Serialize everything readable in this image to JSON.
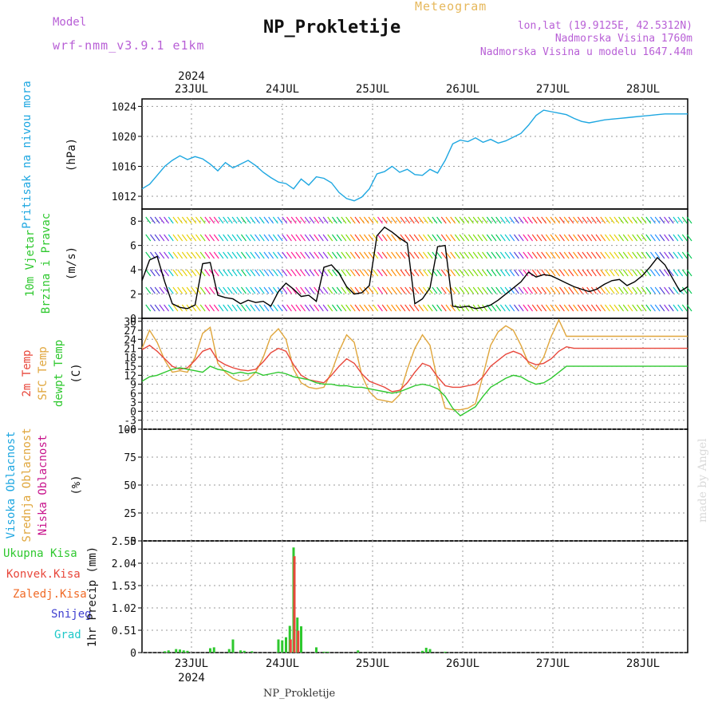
{
  "header": {
    "model_label": "Model",
    "model_name": "wrf-nmm_v3.9.1 e1km",
    "title": "NP_Prokletije",
    "meteogram": "Meteogram",
    "location_line": "lon,lat (19.9125E, 42.5312N)",
    "elevation_line": "Nadmorska Visina 1760m",
    "model_elevation_line": "Nadmorska Visina u modelu 1647.44m"
  },
  "footer": {
    "station": "NP_Prokletije",
    "credit": "made by Angel"
  },
  "colors": {
    "pressure": "#1ea7e1",
    "temp_2m": "#e8473b",
    "temp_sfc": "#e0a63c",
    "dewpoint": "#2ec82e",
    "cloud_high": "#1ea7e1",
    "cloud_mid": "#e0a63c",
    "cloud_low": "#c8148c",
    "precip_total": "#2ec82e",
    "precip_conv": "#e8473b",
    "precip_frz": "#f06a26",
    "precip_snow": "#4040d0",
    "precip_graupel": "#1ec8c8"
  },
  "chart_data": [
    {
      "type": "line",
      "id": "pressure",
      "ylabel": [
        "Pritisak na nivou mora",
        "(hPa)"
      ],
      "ylim": [
        1010.3,
        1025
      ],
      "yticks": [
        1012,
        1016,
        1020,
        1024
      ],
      "xlim": [
        0,
        144
      ],
      "x_top_labels": [
        "23JUL",
        "24JUL",
        "25JUL",
        "26JUL",
        "27JUL",
        "28JUL"
      ],
      "x_top_year": "2024",
      "grid": true,
      "series": [
        {
          "x": [
            0,
            2,
            4,
            6,
            8,
            10,
            12,
            14,
            16,
            18,
            20,
            22,
            24,
            26,
            28,
            30,
            32,
            34,
            36,
            38,
            40,
            42,
            44,
            46,
            48,
            50,
            52,
            54,
            56,
            58,
            60,
            62,
            64,
            66,
            68,
            70,
            72,
            74,
            76,
            78,
            80,
            82,
            84,
            86,
            88,
            90,
            92,
            94,
            96,
            98,
            100,
            102,
            104,
            106,
            108,
            110,
            112,
            114,
            116,
            118,
            120,
            122,
            124,
            126,
            128,
            130,
            132,
            134,
            136,
            138,
            140,
            142,
            144
          ],
          "y": [
            1013.0,
            1013.6,
            1014.8,
            1016.0,
            1016.8,
            1017.4,
            1016.9,
            1017.3,
            1017.0,
            1016.3,
            1015.4,
            1016.5,
            1015.8,
            1016.3,
            1016.8,
            1016.1,
            1015.2,
            1014.5,
            1013.9,
            1013.7,
            1013.0,
            1014.3,
            1013.5,
            1014.6,
            1014.4,
            1013.8,
            1012.5,
            1011.7,
            1011.4,
            1011.9,
            1013.0,
            1015.0,
            1015.3,
            1016.0,
            1015.2,
            1015.6,
            1014.9,
            1014.8,
            1015.6,
            1015.1,
            1016.8,
            1019.0,
            1019.5,
            1019.3,
            1019.8,
            1019.2,
            1019.6,
            1019.1,
            1019.4,
            1019.9,
            1020.4,
            1021.5,
            1022.8,
            1023.5,
            1023.3,
            1023.1,
            1022.9,
            1022.4,
            1022.0,
            1021.8,
            1022.0,
            1022.2,
            1022.3,
            1022.4,
            1022.5,
            1022.6,
            1022.7,
            1022.8,
            1022.9,
            1023.0,
            1023.0,
            1023.0,
            1023.0
          ]
        }
      ]
    },
    {
      "type": "line",
      "id": "wind",
      "ylabel": [
        "10m Vjetar",
        "Brzina i Pravac",
        "(m/s)"
      ],
      "ylim": [
        0,
        9
      ],
      "yticks": [
        0,
        2,
        4,
        6,
        8
      ],
      "xlim": [
        0,
        144
      ],
      "grid": true,
      "series": [
        {
          "name": "speed",
          "x": [
            0,
            2,
            4,
            6,
            8,
            10,
            12,
            14,
            16,
            18,
            20,
            22,
            24,
            26,
            28,
            30,
            32,
            34,
            36,
            38,
            40,
            42,
            44,
            46,
            48,
            50,
            52,
            54,
            56,
            58,
            60,
            62,
            64,
            66,
            68,
            70,
            72,
            74,
            76,
            78,
            80,
            82,
            84,
            86,
            88,
            90,
            92,
            94,
            96,
            98,
            100,
            102,
            104,
            106,
            108,
            110,
            112,
            114,
            116,
            118,
            120,
            122,
            124,
            126,
            128,
            130,
            132,
            134,
            136,
            138,
            140,
            142,
            144
          ],
          "y": [
            3.1,
            4.8,
            5.1,
            3.0,
            1.2,
            0.9,
            0.8,
            1.1,
            4.5,
            4.6,
            1.9,
            1.7,
            1.6,
            1.2,
            1.5,
            1.3,
            1.4,
            1.0,
            2.2,
            2.9,
            2.4,
            1.8,
            1.9,
            1.4,
            4.2,
            4.4,
            3.7,
            2.6,
            2.0,
            2.1,
            2.7,
            6.8,
            7.5,
            7.1,
            6.6,
            6.2,
            1.2,
            1.6,
            2.5,
            5.9,
            6.0,
            1.0,
            0.9,
            1.0,
            0.8,
            0.9,
            1.1,
            1.5,
            2.0,
            2.5,
            3.0,
            3.8,
            3.4,
            3.6,
            3.5,
            3.2,
            2.9,
            2.6,
            2.4,
            2.2,
            2.4,
            2.8,
            3.1,
            3.2,
            2.7,
            3.0,
            3.5,
            4.2,
            5.0,
            4.4,
            3.3,
            2.2,
            2.6
          ]
        }
      ]
    },
    {
      "type": "line",
      "id": "temperature",
      "ylabel": [
        "2m Temp",
        "SFC Temp",
        "dewpt Temp",
        "(C)"
      ],
      "ylim": [
        -6,
        31
      ],
      "yticks": [
        -6,
        -3,
        0,
        3,
        6,
        9,
        12,
        15,
        18,
        21,
        24,
        27,
        30
      ],
      "xlim": [
        0,
        144
      ],
      "grid": true,
      "series": [
        {
          "name": "2m Temp",
          "x": [
            0,
            2,
            4,
            6,
            8,
            10,
            12,
            14,
            16,
            18,
            20,
            22,
            24,
            26,
            28,
            30,
            32,
            34,
            36,
            38,
            40,
            42,
            44,
            46,
            48,
            50,
            52,
            54,
            56,
            58,
            60,
            62,
            64,
            66,
            68,
            70,
            72,
            74,
            76,
            78,
            80,
            82,
            84,
            86,
            88,
            90,
            92,
            94,
            96,
            98,
            100,
            102,
            104,
            106,
            108,
            110,
            112,
            114,
            116,
            118,
            120,
            122,
            124,
            126,
            128,
            130,
            132,
            134,
            136,
            138,
            140,
            142,
            144
          ],
          "y": [
            20.5,
            22.0,
            20.0,
            17.5,
            15.0,
            14.0,
            14.5,
            17.0,
            20.0,
            21.0,
            17.0,
            15.5,
            14.5,
            13.8,
            13.5,
            14.0,
            16.5,
            19.5,
            21.0,
            20.0,
            15.5,
            12.0,
            10.5,
            10.0,
            9.5,
            12.0,
            15.0,
            17.5,
            16.0,
            12.5,
            10.0,
            9.0,
            8.0,
            6.5,
            7.0,
            9.5,
            13.0,
            16.0,
            15.0,
            11.5,
            8.5,
            8.0,
            8.0,
            8.5,
            9.0,
            11.5,
            15.0,
            17.0,
            19.0,
            20.0,
            19.0,
            16.5,
            15.5,
            16.0,
            17.5,
            20.0,
            21.5,
            21.0,
            21.0,
            21.0,
            21.0,
            21.0,
            21.0,
            21.0,
            21.0,
            21.0,
            21.0,
            21.0,
            21.0,
            21.0,
            21.0,
            21.0,
            21.0
          ]
        },
        {
          "name": "SFC Temp",
          "x": [
            0,
            2,
            4,
            6,
            8,
            10,
            12,
            14,
            16,
            18,
            20,
            22,
            24,
            26,
            28,
            30,
            32,
            34,
            36,
            38,
            40,
            42,
            44,
            46,
            48,
            50,
            52,
            54,
            56,
            58,
            60,
            62,
            64,
            66,
            68,
            70,
            72,
            74,
            76,
            78,
            80,
            82,
            84,
            86,
            88,
            90,
            92,
            94,
            96,
            98,
            100,
            102,
            104,
            106,
            108,
            110,
            112,
            114,
            116,
            118,
            120,
            122,
            124,
            126,
            128,
            130,
            132,
            134,
            136,
            138,
            140,
            142,
            144
          ],
          "y": [
            21.0,
            27.0,
            23.0,
            17.0,
            13.0,
            13.5,
            13.0,
            18.0,
            26.0,
            28.0,
            16.0,
            13.0,
            11.0,
            10.0,
            10.5,
            13.0,
            18.0,
            25.0,
            27.5,
            24.0,
            14.0,
            9.5,
            8.0,
            7.5,
            8.0,
            13.0,
            20.0,
            25.5,
            23.0,
            12.0,
            6.5,
            4.0,
            3.5,
            3.0,
            5.5,
            14.0,
            21.0,
            25.5,
            22.0,
            10.0,
            1.0,
            0.5,
            0.5,
            1.0,
            2.5,
            12.0,
            22.0,
            26.5,
            28.5,
            27.0,
            22.0,
            16.0,
            14.0,
            18.0,
            25.0,
            30.5,
            25.0,
            25.0,
            25.0,
            25.0,
            25.0,
            25.0,
            25.0,
            25.0,
            25.0,
            25.0,
            25.0,
            25.0,
            25.0,
            25.0,
            25.0,
            25.0,
            25.0
          ]
        },
        {
          "name": "dewpt Temp",
          "x": [
            0,
            2,
            4,
            6,
            8,
            10,
            12,
            14,
            16,
            18,
            20,
            22,
            24,
            26,
            28,
            30,
            32,
            34,
            36,
            38,
            40,
            42,
            44,
            46,
            48,
            50,
            52,
            54,
            56,
            58,
            60,
            62,
            64,
            66,
            68,
            70,
            72,
            74,
            76,
            78,
            80,
            82,
            84,
            86,
            88,
            90,
            92,
            94,
            96,
            98,
            100,
            102,
            104,
            106,
            108,
            110,
            112,
            114,
            116,
            118,
            120,
            122,
            124,
            126,
            128,
            130,
            132,
            134,
            136,
            138,
            140,
            142,
            144
          ],
          "y": [
            10.0,
            11.5,
            12.0,
            13.0,
            14.0,
            14.5,
            14.0,
            13.5,
            13.0,
            15.0,
            14.0,
            13.5,
            12.5,
            13.0,
            12.5,
            13.0,
            12.0,
            12.5,
            13.0,
            12.5,
            11.5,
            11.0,
            10.5,
            9.5,
            9.0,
            9.0,
            8.5,
            8.5,
            8.0,
            8.0,
            7.5,
            7.0,
            6.5,
            6.0,
            6.5,
            7.5,
            8.5,
            9.0,
            8.5,
            7.5,
            5.0,
            1.0,
            -1.5,
            0.0,
            1.5,
            5.0,
            8.0,
            9.5,
            11.0,
            12.0,
            11.5,
            10.0,
            9.0,
            9.5,
            11.0,
            13.0,
            15.0,
            15.0,
            15.0,
            15.0,
            15.0,
            15.0,
            15.0,
            15.0,
            15.0,
            15.0,
            15.0,
            15.0,
            15.0,
            15.0,
            15.0,
            15.0,
            15.0
          ]
        }
      ]
    },
    {
      "type": "bar",
      "id": "cloud",
      "ylabel": [
        "Visoka Oblacnost",
        "Srednja Oblacnost",
        "Niska Oblacnost",
        "(%)"
      ],
      "ylim": [
        0,
        100
      ],
      "yticks": [
        0,
        25,
        50,
        75,
        100
      ],
      "xlim": [
        0,
        144
      ],
      "grid": true,
      "series": [
        {
          "name": "Niska Oblacnost",
          "x": [],
          "values": []
        },
        {
          "name": "Srednja Oblacnost",
          "x": [],
          "values": []
        },
        {
          "name": "Visoka Oblacnost",
          "x": [],
          "values": []
        }
      ]
    },
    {
      "type": "bar",
      "id": "precip",
      "ylabel": [
        "Ukupna Kisa",
        "Konvek.Kisa",
        "Zaledj.Kisa",
        "Snijeg",
        "Grad",
        "1hr Precip (mm)"
      ],
      "ylim": [
        0,
        2.55
      ],
      "yticks": [
        0,
        0.51,
        1.02,
        1.53,
        2.04,
        2.55
      ],
      "xlim": [
        0,
        144
      ],
      "x_bottom_labels": [
        "23JUL",
        "24JUL",
        "25JUL",
        "26JUL",
        "27JUL",
        "28JUL"
      ],
      "x_bottom_year": "2024",
      "grid": true,
      "series": [
        {
          "name": "Ukupna Kisa",
          "x": [
            6,
            7,
            9,
            10,
            11,
            12,
            18,
            19,
            23,
            24,
            26,
            27,
            29,
            36,
            37,
            38,
            39,
            40,
            41,
            42,
            46,
            48,
            49,
            57,
            74,
            75,
            76,
            80
          ],
          "values": [
            0.03,
            0.05,
            0.08,
            0.07,
            0.05,
            0.04,
            0.1,
            0.12,
            0.08,
            0.3,
            0.05,
            0.04,
            0.03,
            0.3,
            0.28,
            0.35,
            0.61,
            2.4,
            0.8,
            0.6,
            0.12,
            0.02,
            0.02,
            0.05,
            0.04,
            0.11,
            0.08,
            0.02
          ]
        },
        {
          "name": "Konvek.Kisa",
          "x": [
            39,
            40,
            41
          ],
          "values": [
            0.3,
            2.2,
            0.5
          ]
        },
        {
          "name": "Zaledj.Kisa",
          "x": [],
          "values": []
        },
        {
          "name": "Snijeg",
          "x": [],
          "values": []
        },
        {
          "name": "Grad",
          "x": [],
          "values": []
        }
      ]
    }
  ]
}
